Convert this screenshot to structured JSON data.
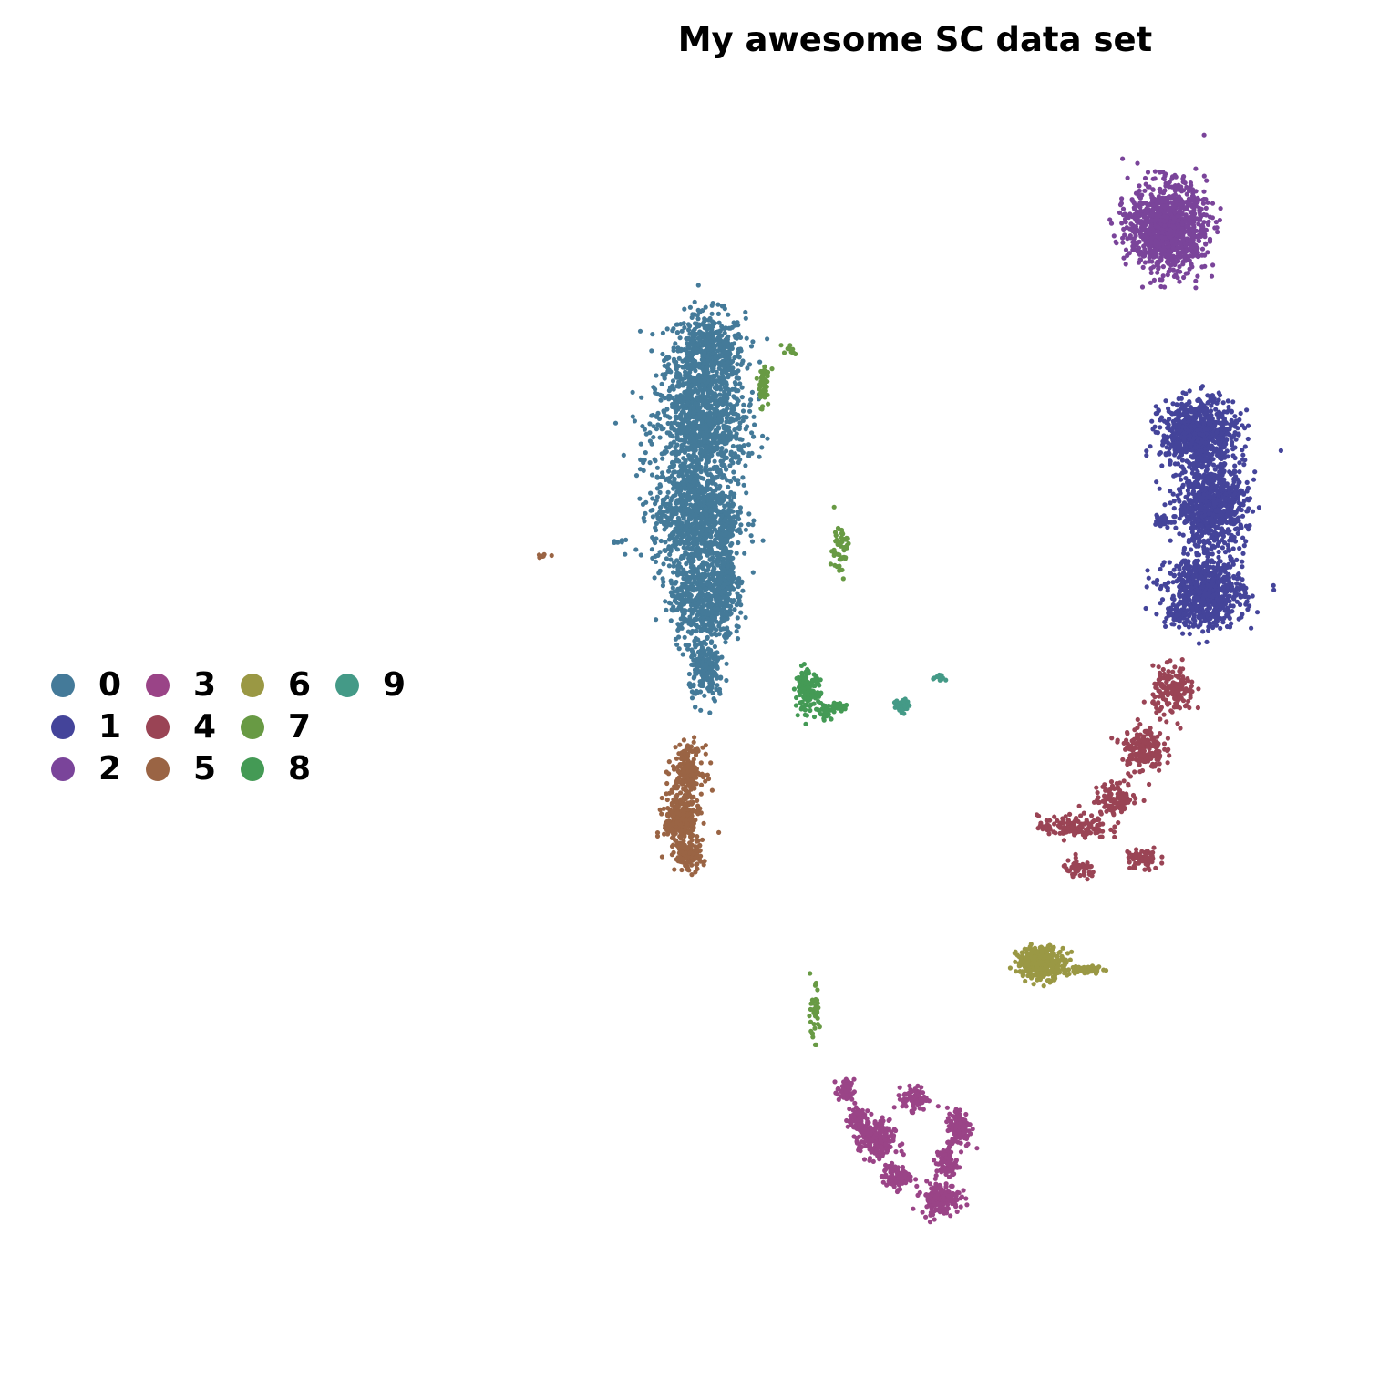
{
  "chart_data": {
    "type": "scatter",
    "title": "My awesome SC data set",
    "xlabel": "",
    "ylabel": "",
    "axes_visible": false,
    "grid": false,
    "legend_placement": "left",
    "legend_ncol": 4,
    "series": [
      {
        "name": "0",
        "color": "#447A99",
        "approx_points": 3200,
        "regions": [
          [
            -3.6,
            7.2,
            0.55,
            0.55
          ],
          [
            -3.7,
            6.2,
            0.65,
            0.7
          ],
          [
            -3.8,
            5.0,
            0.6,
            0.7
          ],
          [
            -3.7,
            3.8,
            0.45,
            0.6
          ],
          [
            -3.6,
            2.8,
            0.25,
            0.4
          ],
          [
            -3.3,
            4.2,
            0.18,
            0.7
          ],
          [
            -5.0,
            4.6,
            0.12,
            0.03
          ]
        ]
      },
      {
        "name": "1",
        "color": "#44449A",
        "approx_points": 2300,
        "regions": [
          [
            4.2,
            6.1,
            0.55,
            0.45
          ],
          [
            4.4,
            5.1,
            0.5,
            0.5
          ],
          [
            4.3,
            3.9,
            0.55,
            0.45
          ],
          [
            3.8,
            3.6,
            0.12,
            0.1
          ],
          [
            3.6,
            4.9,
            0.12,
            0.08
          ]
        ]
      },
      {
        "name": "2",
        "color": "#7A449A",
        "approx_points": 1100,
        "regions": [
          [
            3.7,
            9.0,
            0.55,
            0.55
          ]
        ]
      },
      {
        "name": "3",
        "color": "#9A4487",
        "approx_points": 900,
        "regions": [
          [
            -0.9,
            -3.8,
            0.25,
            0.25
          ],
          [
            -1.4,
            -3.1,
            0.12,
            0.15
          ],
          [
            -0.3,
            -3.2,
            0.18,
            0.15
          ],
          [
            0.4,
            -3.6,
            0.18,
            0.25
          ],
          [
            0.1,
            -4.6,
            0.28,
            0.2
          ],
          [
            0.2,
            -4.1,
            0.15,
            0.2
          ],
          [
            -0.6,
            -4.3,
            0.2,
            0.15
          ],
          [
            -1.2,
            -3.5,
            0.15,
            0.2
          ]
        ]
      },
      {
        "name": "4",
        "color": "#9A4455",
        "approx_points": 700,
        "regions": [
          [
            2.2,
            0.6,
            0.5,
            0.15
          ],
          [
            2.9,
            1.0,
            0.3,
            0.2
          ],
          [
            3.3,
            1.7,
            0.3,
            0.3
          ],
          [
            3.8,
            2.5,
            0.3,
            0.3
          ],
          [
            2.3,
            0.0,
            0.25,
            0.12
          ],
          [
            3.3,
            0.15,
            0.25,
            0.15
          ]
        ]
      },
      {
        "name": "5",
        "color": "#9A6444",
        "approx_points": 600,
        "regions": [
          [
            -3.9,
            1.4,
            0.22,
            0.3
          ],
          [
            -4.0,
            0.7,
            0.25,
            0.35
          ],
          [
            -3.9,
            0.2,
            0.2,
            0.2
          ],
          [
            -6.2,
            4.4,
            0.1,
            0.02
          ]
        ]
      },
      {
        "name": "6",
        "color": "#9A9844",
        "approx_points": 400,
        "regions": [
          [
            1.7,
            -1.3,
            0.35,
            0.2
          ],
          [
            2.4,
            -1.4,
            0.25,
            0.05
          ]
        ]
      },
      {
        "name": "7",
        "color": "#689A44",
        "approx_points": 150,
        "regions": [
          [
            -2.3,
            7.3,
            0.12,
            0.06
          ],
          [
            -1.5,
            4.5,
            0.12,
            0.35
          ],
          [
            -2.7,
            6.8,
            0.1,
            0.3
          ],
          [
            -1.9,
            -2.0,
            0.08,
            0.35
          ]
        ]
      },
      {
        "name": "8",
        "color": "#449A55",
        "approx_points": 200,
        "regions": [
          [
            -2.0,
            2.5,
            0.18,
            0.25
          ],
          [
            -1.7,
            2.2,
            0.1,
            0.1
          ],
          [
            -1.5,
            2.3,
            0.15,
            0.05
          ]
        ]
      },
      {
        "name": "9",
        "color": "#449A87",
        "approx_points": 60,
        "regions": [
          [
            -0.5,
            2.3,
            0.12,
            0.1
          ],
          [
            0.1,
            2.7,
            0.08,
            0.04
          ]
        ]
      }
    ],
    "xlim": [
      -7,
      6.4
    ],
    "ylim": [
      -6.2,
      10.4
    ]
  }
}
